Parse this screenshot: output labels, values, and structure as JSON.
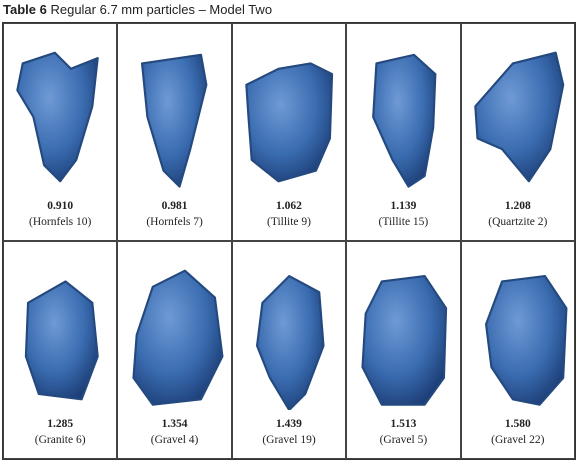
{
  "title": {
    "label": "Table 6",
    "text": "Regular 6.7 mm particles – Model Two"
  },
  "rows": [
    [
      {
        "value": "0.910",
        "label": "(Hornfels 10)"
      },
      {
        "value": "0.981",
        "label": "(Hornfels 7)"
      },
      {
        "value": "1.062",
        "label": "(Tillite 9)"
      },
      {
        "value": "1.139",
        "label": "(Tillite 15)"
      },
      {
        "value": "1.208",
        "label": "(Quartzite 2)"
      }
    ],
    [
      {
        "value": "1.285",
        "label": "(Granite 6)"
      },
      {
        "value": "1.354",
        "label": "(Gravel 4)"
      },
      {
        "value": "1.439",
        "label": "(Gravel 19)"
      },
      {
        "value": "1.513",
        "label": "(Gravel 5)"
      },
      {
        "value": "1.580",
        "label": "(Gravel 22)"
      }
    ]
  ]
}
